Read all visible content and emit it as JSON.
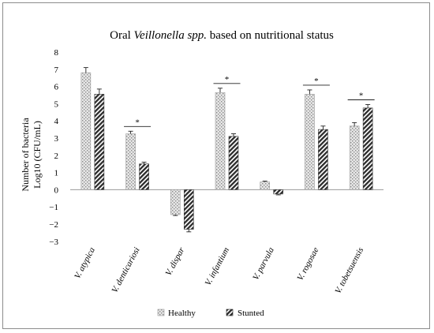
{
  "chart_data": {
    "type": "bar",
    "title": {
      "prefix": "Oral ",
      "italic": "Veillonella spp.",
      "suffix": " based on nutritional status"
    },
    "ylabel_line1": "Number of bacteria",
    "ylabel_line2": "Log10 (CFU/mL)",
    "xlabel": "",
    "ylim": [
      -3,
      8
    ],
    "yticks": [
      "8",
      "7",
      "6",
      "5",
      "4",
      "3",
      "2",
      "1",
      "0",
      "−1",
      "−2",
      "−3"
    ],
    "grid": false,
    "legend_position": "bottom",
    "categories": [
      "V. atypica",
      "V. denticariosi",
      "V. dispar",
      "V. infantium",
      "V. parvula",
      "V. rogosae",
      "V. tobetsuensis"
    ],
    "series": [
      {
        "name": "Healthy",
        "values": [
          6.8,
          3.25,
          -1.45,
          5.65,
          0.45,
          5.55,
          3.7
        ],
        "errors": [
          0.3,
          0.15,
          0.05,
          0.25,
          0.05,
          0.25,
          0.2
        ],
        "pattern": "light-dotted",
        "color": "#bdbdbd"
      },
      {
        "name": "Stunted",
        "values": [
          5.55,
          1.5,
          -2.3,
          3.1,
          -0.25,
          3.5,
          4.75
        ],
        "errors": [
          0.3,
          0.1,
          0.15,
          0.15,
          0.05,
          0.2,
          0.2
        ],
        "pattern": "dark-diagonal",
        "color": "#303030"
      }
    ],
    "significance": [
      {
        "category": "V. denticariosi",
        "label": "*"
      },
      {
        "category": "V. infantium",
        "label": "*"
      },
      {
        "category": "V. rogosae",
        "label": "*"
      },
      {
        "category": "V. tobetsuensis",
        "label": "*"
      }
    ]
  }
}
